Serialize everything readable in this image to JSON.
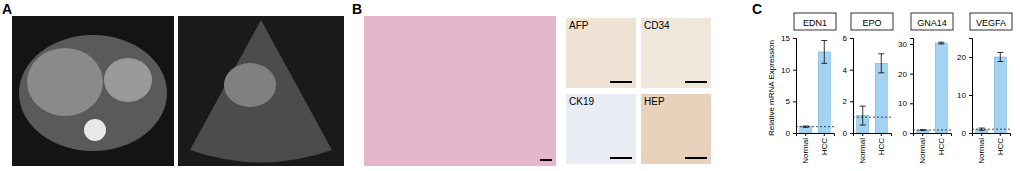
{
  "panels": [
    {
      "label": "A"
    },
    {
      "label": "B",
      "stains": [
        "AFP",
        "CD34",
        "CK19",
        "HEP"
      ]
    },
    {
      "label": "C",
      "y_label": "Relative mRNA Expression"
    }
  ],
  "chart_data": [
    {
      "type": "bar",
      "title": "EDN1",
      "categories": [
        "Normal",
        "HCC"
      ],
      "values": [
        1.0,
        12.8
      ],
      "errors": [
        0.1,
        1.8
      ],
      "reference": 1,
      "color": "#a3d3f3",
      "ylim": [
        0,
        15
      ],
      "yticks": [
        0,
        5,
        10,
        15
      ]
    },
    {
      "type": "bar",
      "title": "EPO",
      "categories": [
        "Normal",
        "HCC"
      ],
      "values": [
        1.1,
        4.4
      ],
      "errors": [
        0.6,
        0.6
      ],
      "reference": 1,
      "color": "#a3d3f3",
      "ylim": [
        0,
        6
      ],
      "yticks": [
        0,
        2,
        4,
        6
      ]
    },
    {
      "type": "bar",
      "title": "GNA14",
      "categories": [
        "Normal",
        "HCC"
      ],
      "values": [
        1.0,
        30.3
      ],
      "errors": [
        0.1,
        0.3
      ],
      "reference": 1,
      "color": "#a3d3f3",
      "ylim": [
        0,
        32
      ],
      "yticks": [
        0,
        10,
        20,
        30
      ]
    },
    {
      "type": "bar",
      "title": "VEGFA",
      "categories": [
        "Normal",
        "HCC"
      ],
      "values": [
        1.0,
        20.0
      ],
      "errors": [
        0.3,
        1.2
      ],
      "reference": 1,
      "color": "#a3d3f3",
      "ylim": [
        0,
        25
      ],
      "yticks": [
        0,
        10,
        20
      ]
    }
  ]
}
